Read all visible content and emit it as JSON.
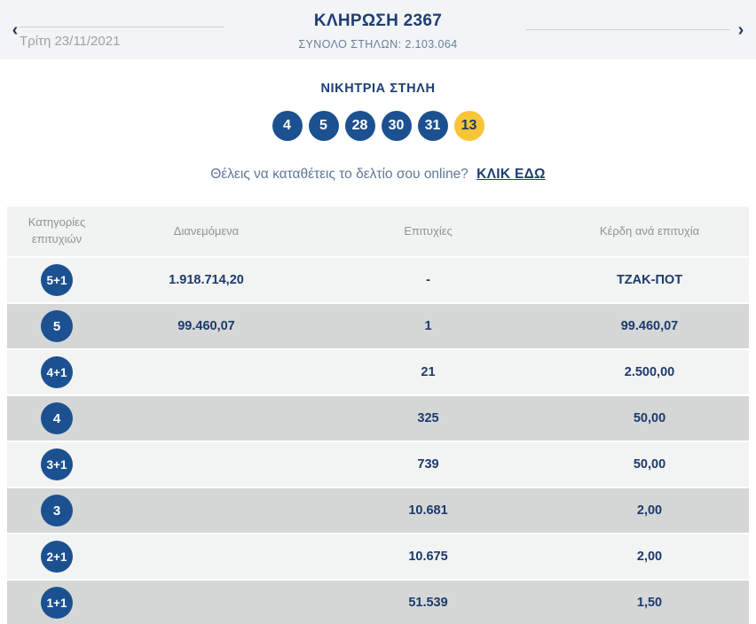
{
  "header": {
    "title": "ΚΛΗΡΩΣΗ 2367",
    "subtitle": "ΣΥΝΟΛΟ ΣΤΗΛΩΝ: 2.103.064",
    "date": "Τρίτη 23/11/2021",
    "prev_icon": "‹",
    "next_icon": "›"
  },
  "winning": {
    "title": "ΝΙΚΗΤΡΙΑ ΣΤΗΛΗ",
    "numbers": [
      "4",
      "5",
      "28",
      "30",
      "31"
    ],
    "joker": "13"
  },
  "promo": {
    "text": "Θέλεις να καταθέτεις το δελτίο σου online?",
    "link_label": "ΚΛΙΚ ΕΔΩ"
  },
  "table": {
    "headers": [
      "Κατηγορίες επιτυχιών",
      "Διανεμόμενα",
      "Επιτυχίες",
      "Κέρδη ανά επιτυχία"
    ],
    "rows": [
      {
        "category": "5+1",
        "distributed": "1.918.714,20",
        "winners": "-",
        "prize": "ΤΖΑΚ-ΠΟΤ"
      },
      {
        "category": "5",
        "distributed": "99.460,07",
        "winners": "1",
        "prize": "99.460,07"
      },
      {
        "category": "4+1",
        "distributed": "",
        "winners": "21",
        "prize": "2.500,00"
      },
      {
        "category": "4",
        "distributed": "",
        "winners": "325",
        "prize": "50,00"
      },
      {
        "category": "3+1",
        "distributed": "",
        "winners": "739",
        "prize": "50,00"
      },
      {
        "category": "3",
        "distributed": "",
        "winners": "10.681",
        "prize": "2,00"
      },
      {
        "category": "2+1",
        "distributed": "",
        "winners": "10.675",
        "prize": "2,00"
      },
      {
        "category": "1+1",
        "distributed": "",
        "winners": "51.539",
        "prize": "1,50"
      }
    ]
  },
  "colors": {
    "navy_text": "#1d3e73",
    "ball_blue": "#1b5191",
    "joker_yellow": "#f9c437",
    "banner_bg": "#f3f4f5",
    "row_light": "#f2f3f3",
    "row_dark": "#d5d7d6",
    "header_text_gray": "#8f9295"
  }
}
